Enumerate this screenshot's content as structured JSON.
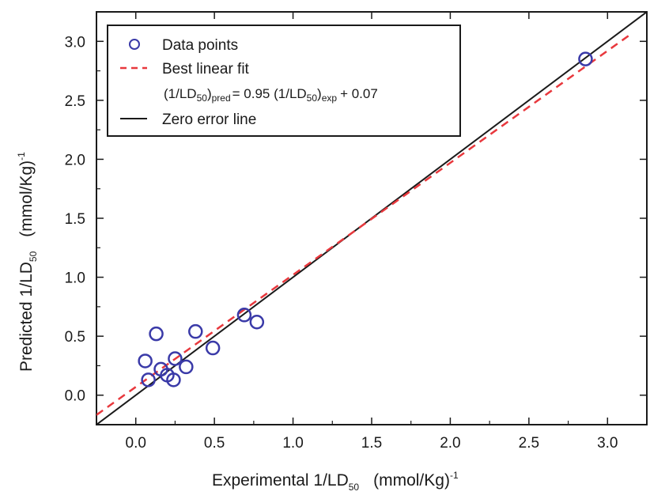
{
  "chart_data": {
    "type": "scatter",
    "xlabel": {
      "text": "Experimental 1/LD",
      "subscript": "50",
      "unit": "(mmol/Kg)",
      "exponent": "-1"
    },
    "ylabel": {
      "text": "Predicted 1/LD",
      "subscript": "50",
      "unit": "(mmol/Kg)",
      "exponent": "-1"
    },
    "xlim": [
      -0.25,
      3.25
    ],
    "ylim": [
      -0.25,
      3.25
    ],
    "xticks": [
      0.0,
      0.5,
      1.0,
      1.5,
      2.0,
      2.5,
      3.0
    ],
    "yticks": [
      0.0,
      0.5,
      1.0,
      1.5,
      2.0,
      2.5,
      3.0
    ],
    "xtick_labels": [
      "0.0",
      "0.5",
      "1.0",
      "1.5",
      "2.0",
      "2.5",
      "3.0"
    ],
    "ytick_labels": [
      "0.0",
      "0.5",
      "1.0",
      "1.5",
      "2.0",
      "2.5",
      "3.0"
    ],
    "series": [
      {
        "name": "Data points",
        "kind": "points",
        "color": "#3a3aa8",
        "points": [
          {
            "x": 0.06,
            "y": 0.29
          },
          {
            "x": 0.08,
            "y": 0.13
          },
          {
            "x": 0.13,
            "y": 0.52
          },
          {
            "x": 0.16,
            "y": 0.22
          },
          {
            "x": 0.2,
            "y": 0.17
          },
          {
            "x": 0.24,
            "y": 0.13
          },
          {
            "x": 0.25,
            "y": 0.31
          },
          {
            "x": 0.32,
            "y": 0.24
          },
          {
            "x": 0.38,
            "y": 0.54
          },
          {
            "x": 0.49,
            "y": 0.4
          },
          {
            "x": 0.69,
            "y": 0.68
          },
          {
            "x": 0.77,
            "y": 0.62
          },
          {
            "x": 2.86,
            "y": 2.85
          }
        ]
      },
      {
        "name": "Best linear fit",
        "kind": "line",
        "style": "dashed",
        "color": "#e8383d",
        "slope": 0.95,
        "intercept": 0.07,
        "x_range": [
          -0.25,
          3.15
        ]
      },
      {
        "name": "Zero error line",
        "kind": "line",
        "style": "solid",
        "color": "#1a1a1a",
        "slope": 1.0,
        "intercept": 0.0,
        "x_range": [
          -0.25,
          3.25
        ]
      }
    ],
    "legend": {
      "placement": "top-left",
      "items": [
        {
          "label": "Data points",
          "marker": "circle"
        },
        {
          "label": "Best linear fit",
          "marker": "dashed-line"
        },
        {
          "label": "Zero error line",
          "marker": "solid-line"
        }
      ],
      "equation": {
        "lhs": "(1/LD",
        "lhs_sub": "50",
        "lhs_close": ")",
        "lhs_sub2": "pred",
        "mid": "= 0.95 (1/LD",
        "mid_sub": "50",
        "mid_close": ")",
        "mid_sub2": "exp",
        "rhs": "+ 0.07"
      }
    },
    "grid": false
  }
}
